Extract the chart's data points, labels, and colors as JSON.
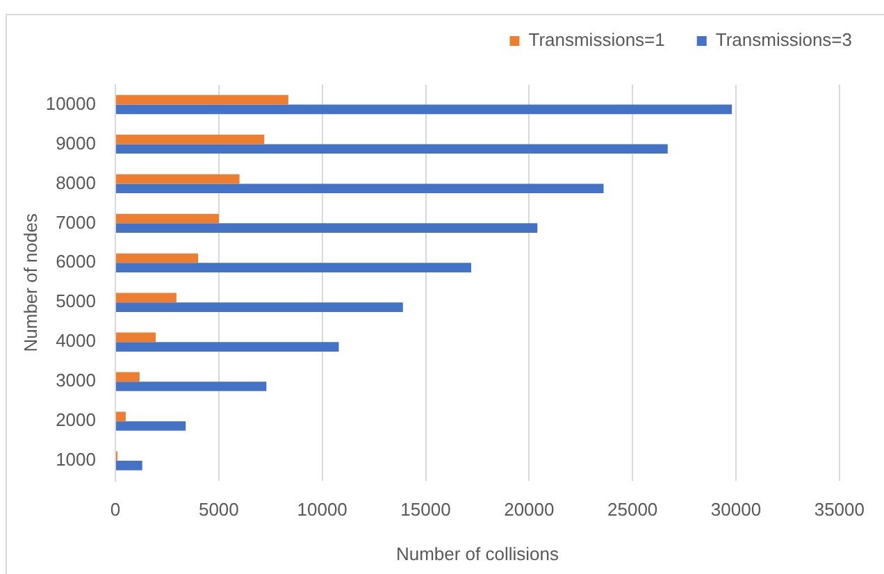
{
  "chart_data": {
    "type": "bar",
    "orientation": "horizontal",
    "categories": [
      "10000",
      "9000",
      "8000",
      "7000",
      "6000",
      "5000",
      "4000",
      "3000",
      "2000",
      "1000"
    ],
    "series": [
      {
        "name": "Transmissions=1",
        "color": "#ed7d31",
        "values": [
          8360,
          7200,
          6000,
          5000,
          4000,
          2950,
          1950,
          1170,
          500,
          100
        ]
      },
      {
        "name": "Transmissions=3",
        "color": "#4472c4",
        "values": [
          29800,
          26700,
          23600,
          20400,
          17200,
          13900,
          10800,
          7300,
          3400,
          1300
        ]
      }
    ],
    "xlabel": "Number of collisions",
    "ylabel": "Number of nodes",
    "xlim": [
      0,
      35000
    ],
    "xticks": [
      0,
      5000,
      10000,
      15000,
      20000,
      25000,
      30000,
      35000
    ],
    "grid": "x",
    "legend": "top right"
  }
}
